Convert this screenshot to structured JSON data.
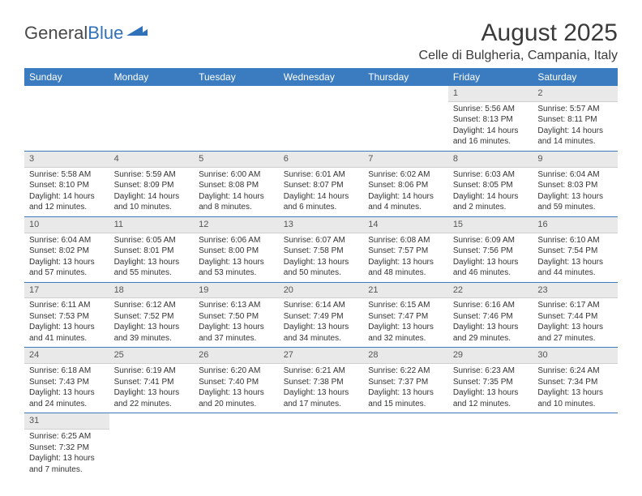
{
  "logo": {
    "text1": "General",
    "text2": "Blue"
  },
  "title": "August 2025",
  "location": "Celle di Bulgheria, Campania, Italy",
  "colors": {
    "header_bg": "#3b7bbf",
    "header_fg": "#ffffff",
    "daynum_bg": "#e9e9e9",
    "rule": "#3b7bbf"
  },
  "weekdays": [
    "Sunday",
    "Monday",
    "Tuesday",
    "Wednesday",
    "Thursday",
    "Friday",
    "Saturday"
  ],
  "weeks": [
    [
      null,
      null,
      null,
      null,
      null,
      {
        "n": "1",
        "sr": "5:56 AM",
        "ss": "8:13 PM",
        "dl": "14 hours and 16 minutes."
      },
      {
        "n": "2",
        "sr": "5:57 AM",
        "ss": "8:11 PM",
        "dl": "14 hours and 14 minutes."
      }
    ],
    [
      {
        "n": "3",
        "sr": "5:58 AM",
        "ss": "8:10 PM",
        "dl": "14 hours and 12 minutes."
      },
      {
        "n": "4",
        "sr": "5:59 AM",
        "ss": "8:09 PM",
        "dl": "14 hours and 10 minutes."
      },
      {
        "n": "5",
        "sr": "6:00 AM",
        "ss": "8:08 PM",
        "dl": "14 hours and 8 minutes."
      },
      {
        "n": "6",
        "sr": "6:01 AM",
        "ss": "8:07 PM",
        "dl": "14 hours and 6 minutes."
      },
      {
        "n": "7",
        "sr": "6:02 AM",
        "ss": "8:06 PM",
        "dl": "14 hours and 4 minutes."
      },
      {
        "n": "8",
        "sr": "6:03 AM",
        "ss": "8:05 PM",
        "dl": "14 hours and 2 minutes."
      },
      {
        "n": "9",
        "sr": "6:04 AM",
        "ss": "8:03 PM",
        "dl": "13 hours and 59 minutes."
      }
    ],
    [
      {
        "n": "10",
        "sr": "6:04 AM",
        "ss": "8:02 PM",
        "dl": "13 hours and 57 minutes."
      },
      {
        "n": "11",
        "sr": "6:05 AM",
        "ss": "8:01 PM",
        "dl": "13 hours and 55 minutes."
      },
      {
        "n": "12",
        "sr": "6:06 AM",
        "ss": "8:00 PM",
        "dl": "13 hours and 53 minutes."
      },
      {
        "n": "13",
        "sr": "6:07 AM",
        "ss": "7:58 PM",
        "dl": "13 hours and 50 minutes."
      },
      {
        "n": "14",
        "sr": "6:08 AM",
        "ss": "7:57 PM",
        "dl": "13 hours and 48 minutes."
      },
      {
        "n": "15",
        "sr": "6:09 AM",
        "ss": "7:56 PM",
        "dl": "13 hours and 46 minutes."
      },
      {
        "n": "16",
        "sr": "6:10 AM",
        "ss": "7:54 PM",
        "dl": "13 hours and 44 minutes."
      }
    ],
    [
      {
        "n": "17",
        "sr": "6:11 AM",
        "ss": "7:53 PM",
        "dl": "13 hours and 41 minutes."
      },
      {
        "n": "18",
        "sr": "6:12 AM",
        "ss": "7:52 PM",
        "dl": "13 hours and 39 minutes."
      },
      {
        "n": "19",
        "sr": "6:13 AM",
        "ss": "7:50 PM",
        "dl": "13 hours and 37 minutes."
      },
      {
        "n": "20",
        "sr": "6:14 AM",
        "ss": "7:49 PM",
        "dl": "13 hours and 34 minutes."
      },
      {
        "n": "21",
        "sr": "6:15 AM",
        "ss": "7:47 PM",
        "dl": "13 hours and 32 minutes."
      },
      {
        "n": "22",
        "sr": "6:16 AM",
        "ss": "7:46 PM",
        "dl": "13 hours and 29 minutes."
      },
      {
        "n": "23",
        "sr": "6:17 AM",
        "ss": "7:44 PM",
        "dl": "13 hours and 27 minutes."
      }
    ],
    [
      {
        "n": "24",
        "sr": "6:18 AM",
        "ss": "7:43 PM",
        "dl": "13 hours and 24 minutes."
      },
      {
        "n": "25",
        "sr": "6:19 AM",
        "ss": "7:41 PM",
        "dl": "13 hours and 22 minutes."
      },
      {
        "n": "26",
        "sr": "6:20 AM",
        "ss": "7:40 PM",
        "dl": "13 hours and 20 minutes."
      },
      {
        "n": "27",
        "sr": "6:21 AM",
        "ss": "7:38 PM",
        "dl": "13 hours and 17 minutes."
      },
      {
        "n": "28",
        "sr": "6:22 AM",
        "ss": "7:37 PM",
        "dl": "13 hours and 15 minutes."
      },
      {
        "n": "29",
        "sr": "6:23 AM",
        "ss": "7:35 PM",
        "dl": "13 hours and 12 minutes."
      },
      {
        "n": "30",
        "sr": "6:24 AM",
        "ss": "7:34 PM",
        "dl": "13 hours and 10 minutes."
      }
    ],
    [
      {
        "n": "31",
        "sr": "6:25 AM",
        "ss": "7:32 PM",
        "dl": "13 hours and 7 minutes."
      },
      null,
      null,
      null,
      null,
      null,
      null
    ]
  ],
  "labels": {
    "sunrise": "Sunrise: ",
    "sunset": "Sunset: ",
    "daylight": "Daylight: "
  }
}
